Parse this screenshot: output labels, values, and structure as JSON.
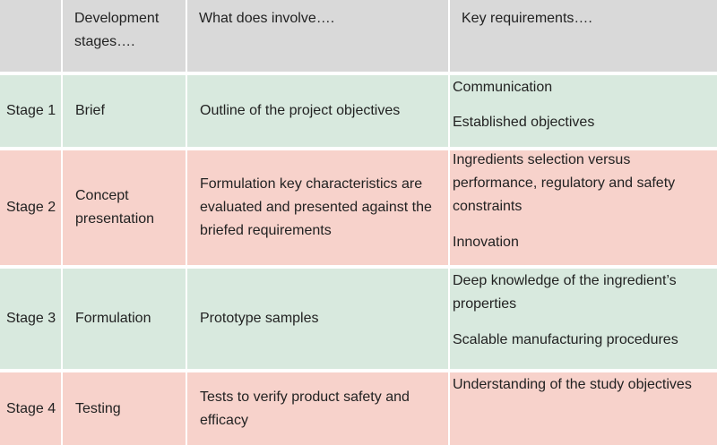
{
  "headers": {
    "stages": "",
    "development": "Development stages….",
    "involve": "What does involve….",
    "requirements": "Key requirements…."
  },
  "colors": {
    "header": "#d9d9d9",
    "green_row": "#d8e9de",
    "red_row": "#f7d2cb"
  },
  "rows": [
    {
      "stage": "Stage 1",
      "name": "Brief",
      "involves": "Outline of the project objectives",
      "requirements": [
        "Communication",
        "Established objectives"
      ]
    },
    {
      "stage": "Stage 2",
      "name": "Concept presentation",
      "involves": "Formulation key characteristics are evaluated and presented against the briefed requirements",
      "requirements": [
        "Ingredients selection versus performance, regulatory and safety constraints",
        "Innovation"
      ]
    },
    {
      "stage": "Stage 3",
      "name": "Formulation",
      "involves": "Prototype samples",
      "requirements": [
        "Deep knowledge of the ingredient’s properties",
        "Scalable manufacturing procedures"
      ]
    },
    {
      "stage": "Stage 4",
      "name": "Testing",
      "involves": "Tests to verify product safety and efficacy",
      "requirements": [
        "Understanding of the study objectives"
      ]
    }
  ]
}
